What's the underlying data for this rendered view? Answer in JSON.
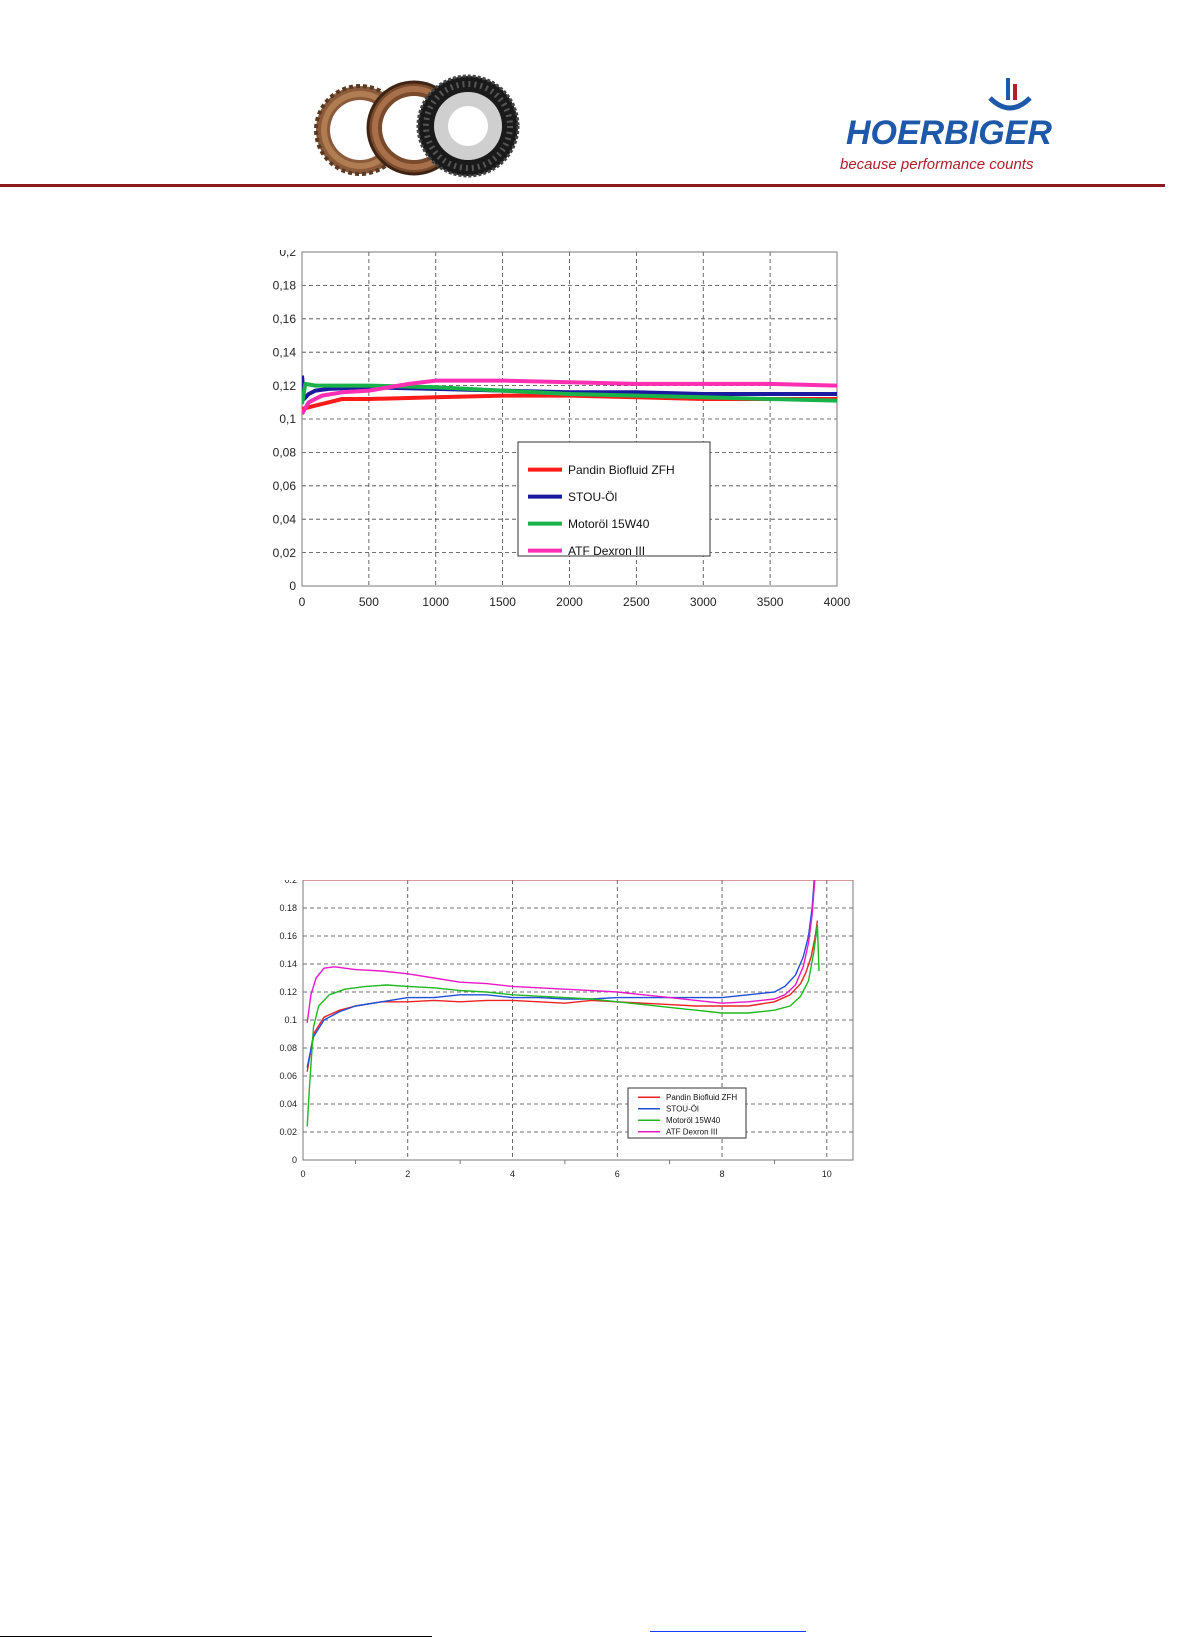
{
  "header": {
    "brand_name": "HOERBIGER",
    "brand_tagline": "because performance counts",
    "discs_icon": "clutch-friction-discs-icon",
    "brand_mark_icon": "hoerbiger-mark-icon",
    "colors": {
      "rule": "#8b1a1a",
      "brand_blue": "#1e58a8",
      "brand_red": "#b0202a"
    }
  },
  "chart_data": [
    {
      "type": "line",
      "title": "",
      "xlabel": "",
      "ylabel": "",
      "xlim": [
        0,
        4000
      ],
      "ylim": [
        0,
        0.2
      ],
      "x_ticks": [
        "0",
        "500",
        "1000",
        "1500",
        "2000",
        "2500",
        "3000",
        "3500",
        "4000"
      ],
      "y_ticks": [
        "0",
        "0,02",
        "0,04",
        "0,06",
        "0,08",
        "0,1",
        "0,12",
        "0,14",
        "0,16",
        "0,18",
        "0,2"
      ],
      "grid": true,
      "legend_position": "lower-right",
      "series": [
        {
          "name": "Pandin Biofluid ZFH",
          "color": "#ff1a1a",
          "width": 4,
          "points": [
            [
              0,
              0.106
            ],
            [
              100,
              0.108
            ],
            [
              200,
              0.11
            ],
            [
              300,
              0.112
            ],
            [
              500,
              0.112
            ],
            [
              1000,
              0.113
            ],
            [
              1500,
              0.114
            ],
            [
              2000,
              0.114
            ],
            [
              2500,
              0.113
            ],
            [
              3000,
              0.112
            ],
            [
              3500,
              0.112
            ],
            [
              4000,
              0.112
            ]
          ]
        },
        {
          "name": "STOU-Öl",
          "color": "#1a1aa0",
          "width": 4,
          "points": [
            [
              0,
              0.126
            ],
            [
              15,
              0.112
            ],
            [
              50,
              0.115
            ],
            [
              100,
              0.117
            ],
            [
              200,
              0.118
            ],
            [
              500,
              0.119
            ],
            [
              1000,
              0.118
            ],
            [
              1500,
              0.117
            ],
            [
              2000,
              0.116
            ],
            [
              2500,
              0.116
            ],
            [
              3000,
              0.115
            ],
            [
              3500,
              0.115
            ],
            [
              4000,
              0.115
            ]
          ]
        },
        {
          "name": "Motoröl 15W40",
          "color": "#19b24a",
          "width": 4,
          "points": [
            [
              0,
              0.109
            ],
            [
              25,
              0.121
            ],
            [
              100,
              0.12
            ],
            [
              500,
              0.12
            ],
            [
              1000,
              0.119
            ],
            [
              1500,
              0.117
            ],
            [
              2000,
              0.115
            ],
            [
              2500,
              0.114
            ],
            [
              3000,
              0.113
            ],
            [
              3500,
              0.112
            ],
            [
              4000,
              0.111
            ]
          ]
        },
        {
          "name": "ATF Dexron III",
          "color": "#ff2fb4",
          "width": 4,
          "points": [
            [
              0,
              0.103
            ],
            [
              50,
              0.11
            ],
            [
              150,
              0.114
            ],
            [
              300,
              0.116
            ],
            [
              500,
              0.117
            ],
            [
              800,
              0.121
            ],
            [
              1000,
              0.123
            ],
            [
              1500,
              0.123
            ],
            [
              2000,
              0.122
            ],
            [
              2500,
              0.121
            ],
            [
              3000,
              0.121
            ],
            [
              3500,
              0.121
            ],
            [
              4000,
              0.12
            ]
          ]
        }
      ]
    },
    {
      "type": "line",
      "title": "",
      "xlabel": "",
      "ylabel": "",
      "xlim": [
        0,
        10.5
      ],
      "ylim": [
        0,
        0.2
      ],
      "x_ticks": [
        "0",
        "2",
        "4",
        "6",
        "8",
        "10"
      ],
      "y_ticks": [
        "0",
        "0.02",
        "0.04",
        "0.06",
        "0.08",
        "0.1",
        "0.12",
        "0.14",
        "0.16",
        "0.18",
        "0.2"
      ],
      "grid": true,
      "legend_position": "lower-right",
      "series": [
        {
          "name": "Pandin Biofluid ZFH",
          "color": "#ee2222",
          "width": 1.4,
          "points": [
            [
              0.08,
              0.063
            ],
            [
              0.2,
              0.09
            ],
            [
              0.4,
              0.102
            ],
            [
              0.7,
              0.107
            ],
            [
              1.0,
              0.11
            ],
            [
              1.5,
              0.113
            ],
            [
              2,
              0.113
            ],
            [
              2.5,
              0.114
            ],
            [
              3,
              0.113
            ],
            [
              3.5,
              0.114
            ],
            [
              4,
              0.114
            ],
            [
              4.5,
              0.113
            ],
            [
              5,
              0.112
            ],
            [
              5.5,
              0.114
            ],
            [
              6,
              0.113
            ],
            [
              6.5,
              0.112
            ],
            [
              7,
              0.111
            ],
            [
              7.5,
              0.11
            ],
            [
              8,
              0.11
            ],
            [
              8.5,
              0.11
            ],
            [
              9,
              0.113
            ],
            [
              9.3,
              0.118
            ],
            [
              9.5,
              0.126
            ],
            [
              9.6,
              0.134
            ],
            [
              9.7,
              0.145
            ],
            [
              9.78,
              0.16
            ],
            [
              9.82,
              0.171
            ]
          ]
        },
        {
          "name": "STOU-Öl",
          "color": "#1f4fd8",
          "width": 1.4,
          "points": [
            [
              0.08,
              0.066
            ],
            [
              0.2,
              0.088
            ],
            [
              0.4,
              0.1
            ],
            [
              0.7,
              0.106
            ],
            [
              1.0,
              0.11
            ],
            [
              1.5,
              0.113
            ],
            [
              2,
              0.116
            ],
            [
              2.5,
              0.116
            ],
            [
              3,
              0.118
            ],
            [
              3.5,
              0.118
            ],
            [
              4,
              0.116
            ],
            [
              4.5,
              0.116
            ],
            [
              5,
              0.115
            ],
            [
              5.5,
              0.115
            ],
            [
              6,
              0.116
            ],
            [
              6.5,
              0.116
            ],
            [
              7,
              0.116
            ],
            [
              7.5,
              0.116
            ],
            [
              8,
              0.116
            ],
            [
              8.5,
              0.118
            ],
            [
              9,
              0.12
            ],
            [
              9.2,
              0.124
            ],
            [
              9.4,
              0.132
            ],
            [
              9.55,
              0.145
            ],
            [
              9.65,
              0.16
            ],
            [
              9.72,
              0.18
            ],
            [
              9.76,
              0.2
            ]
          ]
        },
        {
          "name": "Motoröl 15W40",
          "color": "#1fb81f",
          "width": 1.4,
          "points": [
            [
              0.08,
              0.024
            ],
            [
              0.12,
              0.05
            ],
            [
              0.2,
              0.095
            ],
            [
              0.3,
              0.11
            ],
            [
              0.5,
              0.118
            ],
            [
              0.8,
              0.122
            ],
            [
              1.2,
              0.124
            ],
            [
              1.6,
              0.125
            ],
            [
              2,
              0.124
            ],
            [
              2.5,
              0.123
            ],
            [
              3,
              0.121
            ],
            [
              3.5,
              0.12
            ],
            [
              4,
              0.118
            ],
            [
              4.5,
              0.117
            ],
            [
              5,
              0.116
            ],
            [
              5.5,
              0.115
            ],
            [
              6,
              0.113
            ],
            [
              6.5,
              0.111
            ],
            [
              7,
              0.109
            ],
            [
              7.5,
              0.107
            ],
            [
              8,
              0.105
            ],
            [
              8.5,
              0.105
            ],
            [
              9,
              0.107
            ],
            [
              9.3,
              0.11
            ],
            [
              9.5,
              0.117
            ],
            [
              9.65,
              0.128
            ],
            [
              9.75,
              0.148
            ],
            [
              9.82,
              0.168
            ],
            [
              9.85,
              0.135
            ]
          ]
        },
        {
          "name": "ATF Dexron III",
          "color": "#e818c8",
          "width": 1.4,
          "points": [
            [
              0.08,
              0.098
            ],
            [
              0.15,
              0.118
            ],
            [
              0.25,
              0.13
            ],
            [
              0.4,
              0.137
            ],
            [
              0.6,
              0.138
            ],
            [
              1.0,
              0.136
            ],
            [
              1.5,
              0.135
            ],
            [
              2,
              0.133
            ],
            [
              2.5,
              0.13
            ],
            [
              3,
              0.127
            ],
            [
              3.5,
              0.126
            ],
            [
              4,
              0.124
            ],
            [
              4.5,
              0.123
            ],
            [
              5,
              0.122
            ],
            [
              5.5,
              0.121
            ],
            [
              6,
              0.12
            ],
            [
              6.5,
              0.118
            ],
            [
              7,
              0.116
            ],
            [
              7.5,
              0.114
            ],
            [
              8,
              0.112
            ],
            [
              8.5,
              0.113
            ],
            [
              9,
              0.115
            ],
            [
              9.2,
              0.118
            ],
            [
              9.4,
              0.125
            ],
            [
              9.55,
              0.138
            ],
            [
              9.65,
              0.155
            ],
            [
              9.72,
              0.175
            ],
            [
              9.77,
              0.2
            ]
          ]
        }
      ]
    }
  ]
}
